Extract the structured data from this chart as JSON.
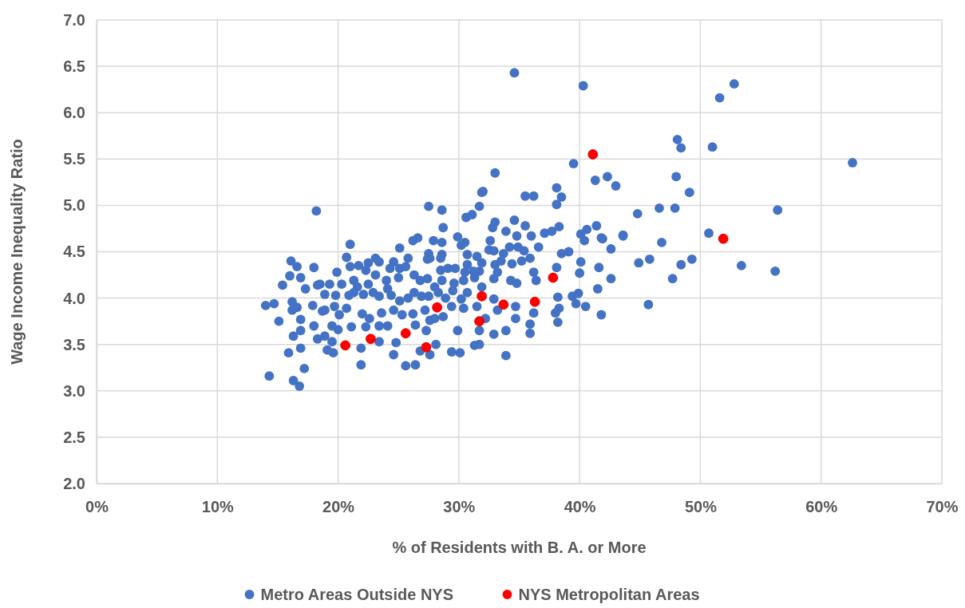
{
  "chart_data": {
    "type": "scatter",
    "xlabel": "% of Residents with B. A. or More",
    "ylabel": "Wage Income Inequality Ratio",
    "xlim": [
      0,
      70
    ],
    "ylim": [
      2,
      7
    ],
    "xticks": [
      {
        "value": 0,
        "label": "0%"
      },
      {
        "value": 10,
        "label": "10%"
      },
      {
        "value": 20,
        "label": "20%"
      },
      {
        "value": 30,
        "label": "30%"
      },
      {
        "value": 40,
        "label": "40%"
      },
      {
        "value": 50,
        "label": "50%"
      },
      {
        "value": 60,
        "label": "60%"
      },
      {
        "value": 70,
        "label": "70%"
      }
    ],
    "yticks": [
      {
        "value": 2,
        "label": "2.0"
      },
      {
        "value": 2.5,
        "label": "2.5"
      },
      {
        "value": 3,
        "label": "3.0"
      },
      {
        "value": 3.5,
        "label": "3.5"
      },
      {
        "value": 4,
        "label": "4.0"
      },
      {
        "value": 4.5,
        "label": "4.5"
      },
      {
        "value": 5,
        "label": "5.0"
      },
      {
        "value": 5.5,
        "label": "5.5"
      },
      {
        "value": 6,
        "label": "6.0"
      },
      {
        "value": 6.5,
        "label": "6.5"
      },
      {
        "value": 7,
        "label": "7.0"
      }
    ],
    "grid": true,
    "legend": "bottom",
    "marker": "circle",
    "series": [
      {
        "name": "Metro Areas Outside NYS",
        "color": "#4472c4",
        "x": [
          52.8,
          51.6,
          48.1,
          48.4,
          51.0,
          62.6,
          48.0,
          49.1,
          47.9,
          56.4,
          50.7,
          49.3,
          48.4,
          53.4,
          56.2,
          47.7,
          34.6,
          40.3,
          39.5,
          33.0,
          42.3,
          41.3,
          43.0,
          32.0,
          35.5,
          36.2,
          38.1,
          38.5,
          38.1,
          31.7,
          44.8,
          46.6,
          30.6,
          31.1,
          33.0,
          32.8,
          34.6,
          33.9,
          35.5,
          34.8,
          36.0,
          37.1,
          37.7,
          38.3,
          40.6,
          41.4,
          40.1,
          41.8,
          43.6,
          29.9,
          32.6,
          40.4,
          41.9,
          43.6,
          46.8,
          42.6,
          38.5,
          39.1,
          38.1,
          40.1,
          41.6,
          44.9,
          45.8,
          40.0,
          42.6,
          41.5,
          39.9,
          39.4,
          38.2,
          39.7,
          40.5,
          45.7,
          38.3,
          38.0,
          41.8,
          38.2,
          31.9,
          27.5,
          28.6,
          28.7,
          30.5,
          30.2,
          26.6,
          26.2,
          27.9,
          28.6,
          21.0,
          25.1,
          27.5,
          28.6,
          27.6,
          28.5,
          30.7,
          31.5,
          32.5,
          32.9,
          33.7,
          34.2,
          34.9,
          35.4,
          36.6,
          35.9,
          34.4,
          35.2,
          31.9,
          30.7,
          20.7,
          23.1,
          23.4,
          22.5,
          24.6,
          25.8,
          27.4,
          21.0,
          21.7,
          22.3,
          24.3,
          25.1,
          25.6,
          28.5,
          29.1,
          29.7,
          30.5,
          31.2,
          31.7,
          33.0,
          33.5,
          19.9,
          18.5,
          19.3,
          20.3,
          21.3,
          21.6,
          22.5,
          23.1,
          24.0,
          24.1,
          25.0,
          26.3,
          26.8,
          27.4,
          28.0,
          28.6,
          29.6,
          30.4,
          31.3,
          31.9,
          32.9,
          33.2,
          34.3,
          34.8,
          36.2,
          36.4,
          18.9,
          19.8,
          20.9,
          21.3,
          22.1,
          22.9,
          23.4,
          24.4,
          25.1,
          25.8,
          26.3,
          26.9,
          27.5,
          28.3,
          28.9,
          29.5,
          30.2,
          30.7,
          32.9,
          33.2,
          34.7,
          36.2,
          18.9,
          19.7,
          20.7,
          20.1,
          22.0,
          22.6,
          23.6,
          24.6,
          25.3,
          26.2,
          27.2,
          27.6,
          28.0,
          28.7,
          29.4,
          30.4,
          31.5,
          32.2,
          34.7,
          35.9,
          33.9,
          32.9,
          31.7,
          29.9,
          27.3,
          26.4,
          24.1,
          23.4,
          22.3,
          21.1,
          20.0,
          19.5,
          18.9,
          19.5,
          21.9,
          23.4,
          24.8,
          26.8,
          28.1,
          29.4,
          30.1,
          31.3,
          31.7,
          24.6,
          27.6,
          33.9,
          21.9,
          25.6,
          26.4,
          35.9,
          18.2,
          16.1,
          16.6,
          18.0,
          16.0,
          16.9,
          15.4,
          18.3,
          17.3,
          14.0,
          14.7,
          16.2,
          16.6,
          16.2,
          17.9,
          18.7,
          15.1,
          16.9,
          18.0,
          16.9,
          16.3,
          18.3,
          16.9,
          15.9,
          17.2,
          14.3,
          16.3,
          16.8,
          19.1,
          19.6
        ],
        "values": [
          6.31,
          6.16,
          5.71,
          5.62,
          5.63,
          5.46,
          5.31,
          5.14,
          4.97,
          4.95,
          4.7,
          4.42,
          4.36,
          4.35,
          4.29,
          4.21,
          6.43,
          6.29,
          5.45,
          5.35,
          5.31,
          5.27,
          5.21,
          5.15,
          5.1,
          5.1,
          5.19,
          5.09,
          5.01,
          4.99,
          4.91,
          4.97,
          4.87,
          4.9,
          4.82,
          4.76,
          4.84,
          4.72,
          4.78,
          4.67,
          4.67,
          4.7,
          4.72,
          4.77,
          4.74,
          4.78,
          4.69,
          4.65,
          4.68,
          4.66,
          4.62,
          4.62,
          4.64,
          4.67,
          4.6,
          4.53,
          4.48,
          4.5,
          4.33,
          4.39,
          4.33,
          4.38,
          4.42,
          4.27,
          4.21,
          4.1,
          4.05,
          4.02,
          4.01,
          3.94,
          3.91,
          3.93,
          3.89,
          3.84,
          3.82,
          3.74,
          5.14,
          4.99,
          4.95,
          4.76,
          4.6,
          4.57,
          4.65,
          4.62,
          4.62,
          4.6,
          4.58,
          4.54,
          4.48,
          4.47,
          4.43,
          4.43,
          4.47,
          4.45,
          4.52,
          4.51,
          4.48,
          4.55,
          4.55,
          4.51,
          4.55,
          4.43,
          4.37,
          4.4,
          4.38,
          4.36,
          4.44,
          4.43,
          4.39,
          4.38,
          4.39,
          4.43,
          4.42,
          4.34,
          4.35,
          4.3,
          4.32,
          4.32,
          4.34,
          4.3,
          4.32,
          4.32,
          4.28,
          4.29,
          4.29,
          4.36,
          4.4,
          4.28,
          4.15,
          4.15,
          4.15,
          4.19,
          4.12,
          4.15,
          4.25,
          4.19,
          4.1,
          4.22,
          4.25,
          4.19,
          4.21,
          4.12,
          4.19,
          4.16,
          4.19,
          4.22,
          4.12,
          4.21,
          4.28,
          4.19,
          4.16,
          4.28,
          4.19,
          4.04,
          4.03,
          4.03,
          4.06,
          4.04,
          4.06,
          4.02,
          4.03,
          3.97,
          4.0,
          4.06,
          4.02,
          4.02,
          4.06,
          4.0,
          4.08,
          3.99,
          4.06,
          3.99,
          3.87,
          3.91,
          3.84,
          3.87,
          3.91,
          3.89,
          3.82,
          3.83,
          3.78,
          3.84,
          3.87,
          3.82,
          3.83,
          3.87,
          3.76,
          3.78,
          3.8,
          3.91,
          3.89,
          3.91,
          3.78,
          3.78,
          3.72,
          3.65,
          3.61,
          3.65,
          3.65,
          3.65,
          3.71,
          3.7,
          3.7,
          3.69,
          3.69,
          3.66,
          3.7,
          3.59,
          3.53,
          3.46,
          3.53,
          3.52,
          3.43,
          3.5,
          3.42,
          3.41,
          3.49,
          3.5,
          3.39,
          3.39,
          3.38,
          3.28,
          3.27,
          3.28,
          3.62,
          4.94,
          4.4,
          4.34,
          4.33,
          4.24,
          4.22,
          4.14,
          4.14,
          4.1,
          3.92,
          3.94,
          3.96,
          3.9,
          3.87,
          3.92,
          3.86,
          3.75,
          3.77,
          3.7,
          3.65,
          3.59,
          3.56,
          3.46,
          3.41,
          3.24,
          3.16,
          3.11,
          3.05,
          3.44,
          3.41
        ]
      },
      {
        "name": "NYS Metropolitan Areas",
        "color": "#ff0000",
        "x": [
          20.6,
          22.7,
          25.6,
          27.3,
          28.2,
          31.9,
          31.7,
          33.7,
          36.3,
          37.8,
          41.1,
          51.9
        ],
        "values": [
          3.49,
          3.56,
          3.62,
          3.47,
          3.9,
          4.02,
          3.75,
          3.93,
          3.96,
          4.22,
          5.55,
          4.64
        ]
      }
    ]
  }
}
